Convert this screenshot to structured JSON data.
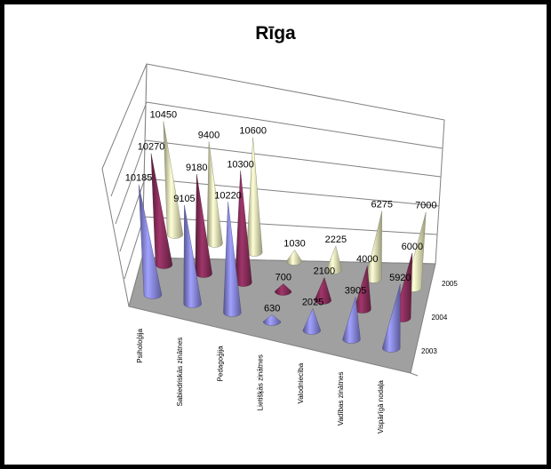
{
  "chart_data": {
    "type": "cone3d",
    "title": "Rīga",
    "categories": [
      "Psiholoģija",
      "Sabiedriskās zinātnes",
      "Pedagoģija",
      "Lietišķās zinātnes",
      "Valodniecība",
      "Vadības zinātnes",
      "Vispārīgā nodaļa"
    ],
    "series": [
      {
        "name": "2003",
        "color": "#9999ff",
        "values": [
          10185,
          9105,
          10220,
          630,
          2025,
          3905,
          5920
        ]
      },
      {
        "name": "2004",
        "color": "#993366",
        "values": [
          10270,
          9180,
          10300,
          700,
          2100,
          4000,
          6000
        ]
      },
      {
        "name": "2005",
        "color": "#ffffcc",
        "values": [
          10450,
          9400,
          10600,
          1030,
          2225,
          6275,
          7000
        ]
      }
    ]
  }
}
